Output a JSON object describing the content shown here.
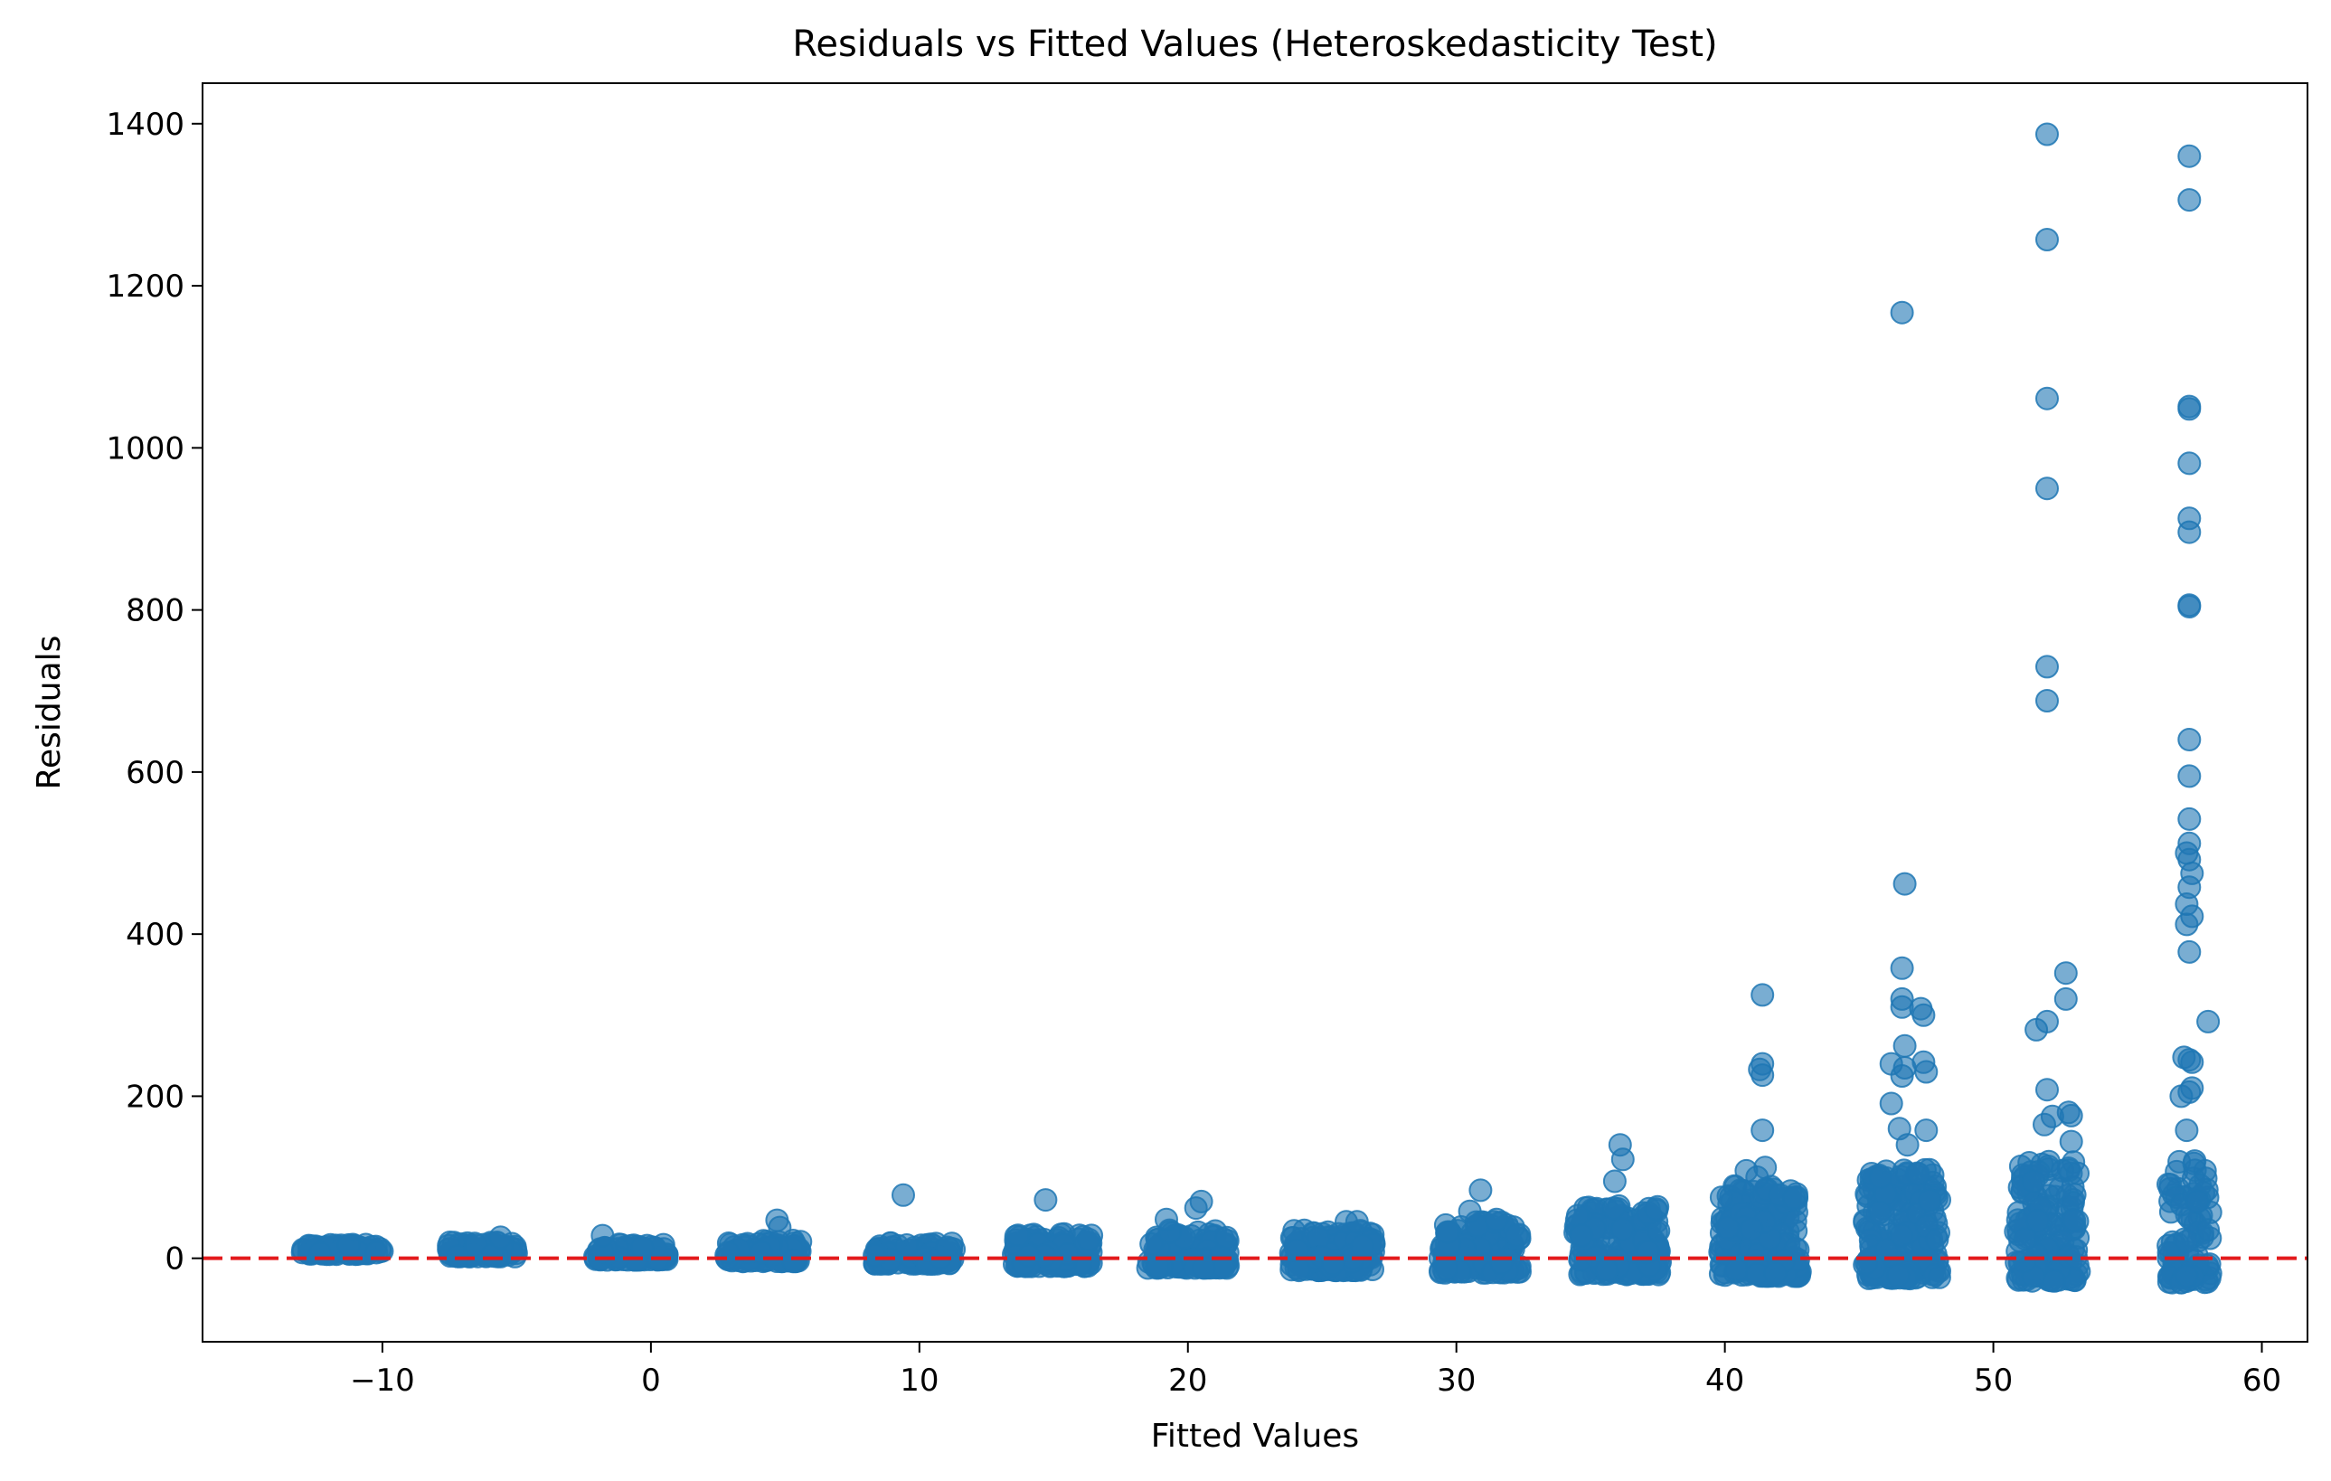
{
  "chart_data": {
    "type": "scatter",
    "title": "Residuals vs Fitted Values (Heteroskedasticity Test)",
    "xlabel": "Fitted Values",
    "ylabel": "Residuals",
    "xlim": [
      -16.7,
      61.7
    ],
    "ylim": [
      -103,
      1450
    ],
    "xticks": [
      -10,
      0,
      10,
      20,
      30,
      40,
      50,
      60
    ],
    "xtick_labels": [
      "−10",
      "0",
      "10",
      "20",
      "30",
      "40",
      "50",
      "60"
    ],
    "yticks": [
      0,
      200,
      400,
      600,
      800,
      1000,
      1200,
      1400
    ],
    "ytick_labels": [
      "0",
      "200",
      "400",
      "600",
      "800",
      "1000",
      "1200",
      "1400"
    ],
    "reference_line": {
      "y": 0,
      "style": "dashed",
      "color": "#e31a1c"
    },
    "marker_color": "#1f77b4",
    "marker_alpha": 0.6,
    "grid": false,
    "clusters": [
      {
        "center": -11.5,
        "spread": 1.5,
        "ymin": 5,
        "ymax": 17,
        "n": 90
      },
      {
        "center": -6.3,
        "spread": 1.3,
        "ymin": 2,
        "ymax": 20,
        "n": 90
      },
      {
        "center": -0.7,
        "spread": 1.4,
        "ymin": -2,
        "ymax": 18,
        "n": 90
      },
      {
        "center": 4.2,
        "spread": 1.4,
        "ymin": -4,
        "ymax": 22,
        "n": 110
      },
      {
        "center": 9.8,
        "spread": 1.5,
        "ymin": -7,
        "ymax": 20,
        "n": 110
      },
      {
        "center": 15.0,
        "spread": 1.5,
        "ymin": -10,
        "ymax": 32,
        "n": 150
      },
      {
        "center": 20.0,
        "spread": 1.5,
        "ymin": -12,
        "ymax": 35,
        "n": 150
      },
      {
        "center": 25.4,
        "spread": 1.6,
        "ymin": -15,
        "ymax": 35,
        "n": 160
      },
      {
        "center": 30.9,
        "spread": 1.5,
        "ymin": -18,
        "ymax": 45,
        "n": 150
      },
      {
        "center": 36.0,
        "spread": 1.6,
        "ymin": -20,
        "ymax": 65,
        "n": 190
      },
      {
        "center": 41.3,
        "spread": 1.5,
        "ymin": -22,
        "ymax": 90,
        "n": 220
      },
      {
        "center": 46.6,
        "spread": 1.4,
        "ymin": -25,
        "ymax": 110,
        "n": 220
      },
      {
        "center": 52.0,
        "spread": 1.2,
        "ymin": -28,
        "ymax": 120,
        "n": 160
      },
      {
        "center": 57.3,
        "spread": 0.8,
        "ymin": -30,
        "ymax": 120,
        "n": 90
      }
    ],
    "outliers": [
      [
        9.4,
        78
      ],
      [
        14.7,
        72
      ],
      [
        4.7,
        47
      ],
      [
        4.8,
        38
      ],
      [
        -1.8,
        28
      ],
      [
        -5.6,
        26
      ],
      [
        20.5,
        70
      ],
      [
        20.3,
        62
      ],
      [
        19.2,
        48
      ],
      [
        25.9,
        45
      ],
      [
        26.3,
        45
      ],
      [
        30.9,
        84
      ],
      [
        30.5,
        58
      ],
      [
        31.5,
        48
      ],
      [
        36.1,
        140
      ],
      [
        36.2,
        122
      ],
      [
        35.9,
        95
      ],
      [
        41.4,
        325
      ],
      [
        41.4,
        240
      ],
      [
        41.3,
        233
      ],
      [
        41.4,
        226
      ],
      [
        41.4,
        158
      ],
      [
        41.5,
        112
      ],
      [
        41.2,
        100
      ],
      [
        40.8,
        108
      ],
      [
        46.6,
        1167
      ],
      [
        46.7,
        462
      ],
      [
        46.6,
        358
      ],
      [
        46.6,
        320
      ],
      [
        46.6,
        310
      ],
      [
        47.3,
        308
      ],
      [
        47.4,
        300
      ],
      [
        46.7,
        262
      ],
      [
        46.2,
        240
      ],
      [
        47.4,
        242
      ],
      [
        46.7,
        235
      ],
      [
        46.6,
        225
      ],
      [
        46.2,
        191
      ],
      [
        47.5,
        230
      ],
      [
        47.5,
        158
      ],
      [
        46.5,
        160
      ],
      [
        46.8,
        140
      ],
      [
        45.8,
        100
      ],
      [
        52.0,
        1387
      ],
      [
        52.0,
        1257
      ],
      [
        52.0,
        1061
      ],
      [
        52.0,
        950
      ],
      [
        52.0,
        730
      ],
      [
        52.0,
        688
      ],
      [
        52.7,
        352
      ],
      [
        52.7,
        320
      ],
      [
        52.0,
        292
      ],
      [
        51.6,
        282
      ],
      [
        52.0,
        208
      ],
      [
        52.8,
        180
      ],
      [
        52.9,
        176
      ],
      [
        52.9,
        144
      ],
      [
        52.2,
        175
      ],
      [
        51.9,
        165
      ],
      [
        57.3,
        1360
      ],
      [
        57.3,
        1306
      ],
      [
        57.3,
        1051
      ],
      [
        57.3,
        1048
      ],
      [
        57.3,
        981
      ],
      [
        57.3,
        913
      ],
      [
        57.3,
        896
      ],
      [
        57.3,
        806
      ],
      [
        57.3,
        804
      ],
      [
        57.3,
        640
      ],
      [
        57.3,
        595
      ],
      [
        57.3,
        542
      ],
      [
        57.3,
        512
      ],
      [
        57.2,
        500
      ],
      [
        57.3,
        492
      ],
      [
        57.4,
        475
      ],
      [
        57.3,
        458
      ],
      [
        57.2,
        437
      ],
      [
        57.4,
        422
      ],
      [
        57.2,
        412
      ],
      [
        57.3,
        378
      ],
      [
        58.0,
        292
      ],
      [
        57.1,
        248
      ],
      [
        57.3,
        245
      ],
      [
        57.4,
        242
      ],
      [
        57.4,
        210
      ],
      [
        57.3,
        205
      ],
      [
        57.0,
        200
      ],
      [
        57.2,
        158
      ],
      [
        57.5,
        120
      ],
      [
        57.7,
        90
      ],
      [
        57.6,
        70
      ],
      [
        58.0,
        35
      ],
      [
        57.0,
        -30
      ],
      [
        57.2,
        -22
      ]
    ]
  }
}
